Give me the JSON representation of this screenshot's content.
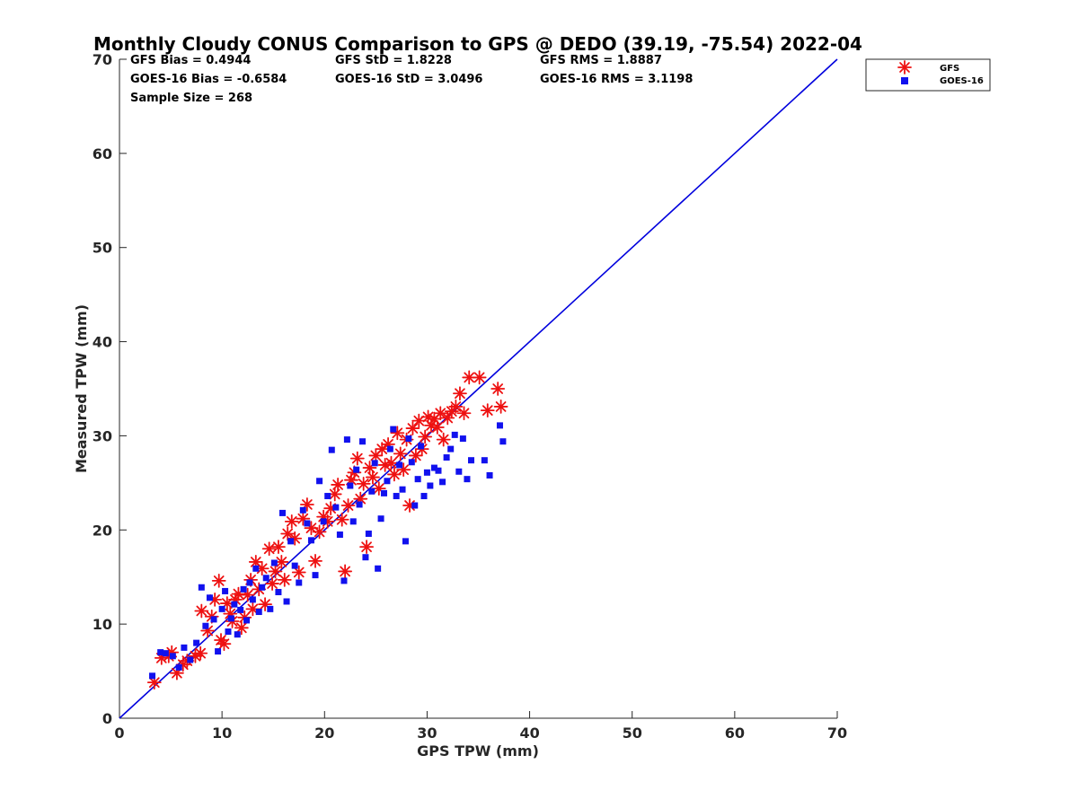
{
  "chart_data": {
    "type": "scatter",
    "title": "Monthly Cloudy CONUS Comparison to GPS @ DEDO (39.19, -75.54) 2022-04",
    "xlabel": "GPS TPW (mm)",
    "ylabel": "Measured TPW (mm)",
    "xlim": [
      0,
      70
    ],
    "ylim": [
      0,
      70
    ],
    "xticks": [
      "0",
      "10",
      "20",
      "30",
      "40",
      "50",
      "60",
      "70"
    ],
    "yticks": [
      "0",
      "10",
      "20",
      "30",
      "40",
      "50",
      "60",
      "70"
    ],
    "grid": false,
    "legend_position": "outside top-right",
    "reference_line": {
      "from": [
        0,
        0
      ],
      "to": [
        70,
        70
      ],
      "color": "#0000dd"
    },
    "stats": {
      "gfs_bias": "GFS Bias = 0.4944",
      "gfs_std": "GFS StD = 1.8228",
      "gfs_rms": "GFS RMS = 1.8887",
      "goes_bias": "GOES-16 Bias = -0.6584",
      "goes_std": "GOES-16 StD = 3.0496",
      "goes_rms": "GOES-16 RMS = 3.1198",
      "sample_size": "Sample Size = 268"
    },
    "series": [
      {
        "name": "GFS",
        "marker": "asterisk",
        "color": "#ee1111",
        "points": [
          [
            3.4,
            3.8
          ],
          [
            4.1,
            6.4
          ],
          [
            4.8,
            6.6
          ],
          [
            5.1,
            7.0
          ],
          [
            5.6,
            4.8
          ],
          [
            6.2,
            5.7
          ],
          [
            6.6,
            6.1
          ],
          [
            7.4,
            6.6
          ],
          [
            7.9,
            6.9
          ],
          [
            8.0,
            11.4
          ],
          [
            8.6,
            9.3
          ],
          [
            9.0,
            10.8
          ],
          [
            9.3,
            12.6
          ],
          [
            9.7,
            14.6
          ],
          [
            9.9,
            8.3
          ],
          [
            10.2,
            7.9
          ],
          [
            10.5,
            12.2
          ],
          [
            10.8,
            11.1
          ],
          [
            11.0,
            10.3
          ],
          [
            11.3,
            12.6
          ],
          [
            11.6,
            13.2
          ],
          [
            11.9,
            9.6
          ],
          [
            12.2,
            10.7
          ],
          [
            12.5,
            13.1
          ],
          [
            12.8,
            14.7
          ],
          [
            13.0,
            11.6
          ],
          [
            13.3,
            16.6
          ],
          [
            13.6,
            13.7
          ],
          [
            13.9,
            15.9
          ],
          [
            14.2,
            12.1
          ],
          [
            14.6,
            18.0
          ],
          [
            14.9,
            14.3
          ],
          [
            15.2,
            15.6
          ],
          [
            15.5,
            18.2
          ],
          [
            15.8,
            16.6
          ],
          [
            16.1,
            14.7
          ],
          [
            16.4,
            19.6
          ],
          [
            16.8,
            20.9
          ],
          [
            17.1,
            19.1
          ],
          [
            17.5,
            15.5
          ],
          [
            17.9,
            21.2
          ],
          [
            18.3,
            22.7
          ],
          [
            18.7,
            20.2
          ],
          [
            19.1,
            16.7
          ],
          [
            19.5,
            19.8
          ],
          [
            19.9,
            21.4
          ],
          [
            20.3,
            20.9
          ],
          [
            20.6,
            22.3
          ],
          [
            21.0,
            23.8
          ],
          [
            21.3,
            24.8
          ],
          [
            21.7,
            21.1
          ],
          [
            22.0,
            15.6
          ],
          [
            22.3,
            22.6
          ],
          [
            22.6,
            25.3
          ],
          [
            22.9,
            26.1
          ],
          [
            23.2,
            27.6
          ],
          [
            23.5,
            23.3
          ],
          [
            23.8,
            24.9
          ],
          [
            24.1,
            18.2
          ],
          [
            24.4,
            26.6
          ],
          [
            24.7,
            25.6
          ],
          [
            25.0,
            27.9
          ],
          [
            25.3,
            24.4
          ],
          [
            25.6,
            28.6
          ],
          [
            25.9,
            26.9
          ],
          [
            26.2,
            29.1
          ],
          [
            26.5,
            27.1
          ],
          [
            26.8,
            25.9
          ],
          [
            27.1,
            30.3
          ],
          [
            27.4,
            28.1
          ],
          [
            27.7,
            26.4
          ],
          [
            28.0,
            29.6
          ],
          [
            28.3,
            22.6
          ],
          [
            28.6,
            30.8
          ],
          [
            28.9,
            27.9
          ],
          [
            29.2,
            31.6
          ],
          [
            29.5,
            28.6
          ],
          [
            29.8,
            29.9
          ],
          [
            30.1,
            32.0
          ],
          [
            30.4,
            31.1
          ],
          [
            30.7,
            31.8
          ],
          [
            31.0,
            30.9
          ],
          [
            31.3,
            32.4
          ],
          [
            31.6,
            29.6
          ],
          [
            32.0,
            31.9
          ],
          [
            32.4,
            32.6
          ],
          [
            32.8,
            33.1
          ],
          [
            33.2,
            34.5
          ],
          [
            33.6,
            32.4
          ],
          [
            34.1,
            36.2
          ],
          [
            35.1,
            36.2
          ],
          [
            35.9,
            32.7
          ],
          [
            36.9,
            35.0
          ],
          [
            37.2,
            33.1
          ]
        ]
      },
      {
        "name": "GOES-16",
        "marker": "square",
        "color": "#1111ee",
        "points": [
          [
            3.2,
            4.5
          ],
          [
            4.0,
            7.0
          ],
          [
            4.5,
            6.9
          ],
          [
            5.2,
            6.6
          ],
          [
            5.8,
            5.4
          ],
          [
            6.3,
            7.5
          ],
          [
            6.9,
            6.2
          ],
          [
            7.5,
            8.0
          ],
          [
            8.0,
            13.9
          ],
          [
            8.4,
            9.8
          ],
          [
            8.8,
            12.8
          ],
          [
            9.2,
            10.5
          ],
          [
            9.6,
            7.1
          ],
          [
            10.0,
            11.6
          ],
          [
            10.3,
            13.5
          ],
          [
            10.6,
            9.2
          ],
          [
            10.9,
            10.6
          ],
          [
            11.2,
            12.1
          ],
          [
            11.5,
            8.9
          ],
          [
            11.8,
            11.5
          ],
          [
            12.1,
            13.7
          ],
          [
            12.4,
            10.4
          ],
          [
            12.7,
            14.4
          ],
          [
            13.0,
            12.6
          ],
          [
            13.3,
            15.9
          ],
          [
            13.6,
            11.3
          ],
          [
            13.9,
            13.9
          ],
          [
            14.3,
            14.9
          ],
          [
            14.7,
            11.6
          ],
          [
            15.1,
            16.5
          ],
          [
            15.5,
            13.4
          ],
          [
            15.9,
            21.8
          ],
          [
            16.3,
            12.4
          ],
          [
            16.7,
            18.8
          ],
          [
            17.1,
            16.2
          ],
          [
            17.5,
            14.4
          ],
          [
            17.9,
            22.1
          ],
          [
            18.3,
            20.7
          ],
          [
            18.7,
            18.9
          ],
          [
            19.1,
            15.2
          ],
          [
            19.5,
            25.2
          ],
          [
            19.9,
            20.9
          ],
          [
            20.3,
            23.6
          ],
          [
            20.7,
            28.5
          ],
          [
            21.1,
            22.4
          ],
          [
            21.5,
            19.5
          ],
          [
            21.9,
            14.6
          ],
          [
            22.2,
            29.6
          ],
          [
            22.5,
            24.7
          ],
          [
            22.8,
            20.9
          ],
          [
            23.1,
            26.4
          ],
          [
            23.4,
            22.7
          ],
          [
            23.7,
            29.4
          ],
          [
            24.0,
            17.1
          ],
          [
            24.3,
            19.6
          ],
          [
            24.6,
            24.1
          ],
          [
            24.9,
            27.1
          ],
          [
            25.2,
            15.9
          ],
          [
            25.5,
            21.2
          ],
          [
            25.8,
            23.9
          ],
          [
            26.1,
            25.2
          ],
          [
            26.4,
            28.6
          ],
          [
            26.7,
            30.7
          ],
          [
            27.0,
            23.6
          ],
          [
            27.3,
            26.9
          ],
          [
            27.6,
            24.3
          ],
          [
            27.9,
            18.8
          ],
          [
            28.2,
            29.7
          ],
          [
            28.5,
            27.2
          ],
          [
            28.8,
            22.6
          ],
          [
            29.1,
            25.4
          ],
          [
            29.4,
            28.9
          ],
          [
            29.7,
            23.6
          ],
          [
            30.0,
            26.1
          ],
          [
            30.3,
            24.7
          ],
          [
            30.7,
            26.6
          ],
          [
            31.1,
            26.3
          ],
          [
            31.5,
            25.1
          ],
          [
            31.9,
            27.7
          ],
          [
            32.3,
            28.6
          ],
          [
            32.7,
            30.1
          ],
          [
            33.1,
            26.2
          ],
          [
            33.5,
            29.7
          ],
          [
            33.9,
            25.4
          ],
          [
            34.3,
            27.4
          ],
          [
            35.6,
            27.4
          ],
          [
            36.1,
            25.8
          ],
          [
            37.1,
            31.1
          ],
          [
            37.4,
            29.4
          ]
        ]
      }
    ]
  }
}
